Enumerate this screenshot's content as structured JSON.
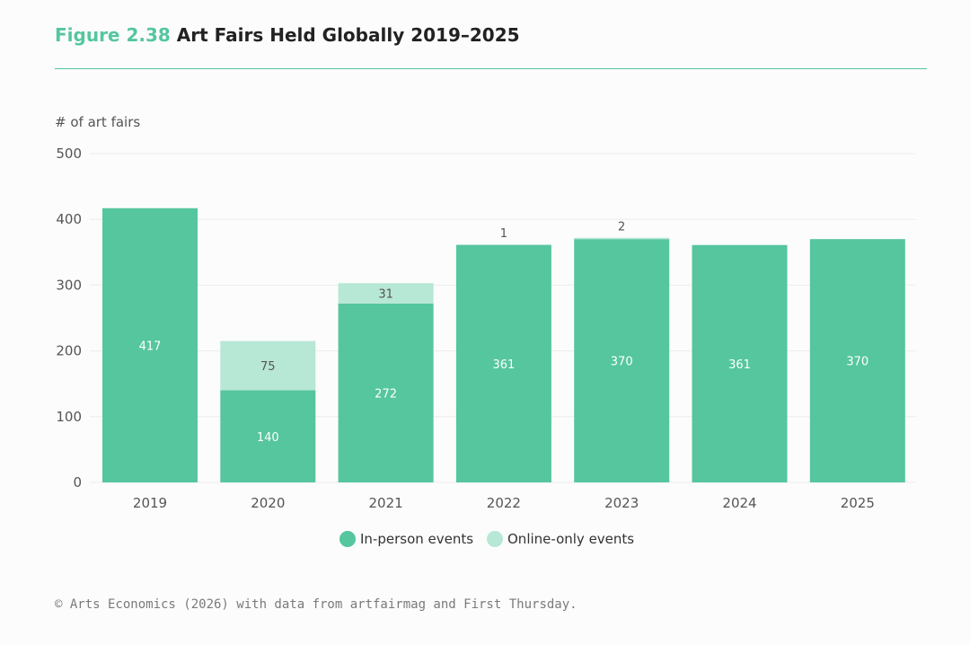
{
  "figure": {
    "number": "Figure 2.38",
    "title": "Art Fairs Held Globally 2019–2025"
  },
  "colors": {
    "in_person": "#55c69e",
    "online": "#b7e7d5",
    "grid": "#ececec",
    "axis_text": "#555555",
    "title_accent": "#55c69e"
  },
  "chart_data": {
    "type": "bar",
    "stacked": true,
    "ylabel": "# of art fairs",
    "ylim": [
      0,
      500
    ],
    "yticks": [
      0,
      100,
      200,
      300,
      400,
      500
    ],
    "grid": true,
    "legend_position": "bottom-center",
    "categories": [
      "2019",
      "2020",
      "2021",
      "2022",
      "2023",
      "2024",
      "2025"
    ],
    "series": [
      {
        "name": "In-person events",
        "color": "#55c69e",
        "values": [
          417,
          140,
          272,
          361,
          370,
          361,
          370
        ],
        "labels": [
          "417",
          "140",
          "272",
          "361",
          "370",
          "361",
          "370"
        ]
      },
      {
        "name": "Online-only events",
        "color": "#b7e7d5",
        "values": [
          0,
          75,
          31,
          1,
          2,
          0,
          0
        ],
        "labels": [
          "",
          "75",
          "31",
          "1",
          "2",
          "",
          ""
        ]
      }
    ]
  },
  "footer": "© Arts Economics (2026) with data from artfairmag and First Thursday."
}
